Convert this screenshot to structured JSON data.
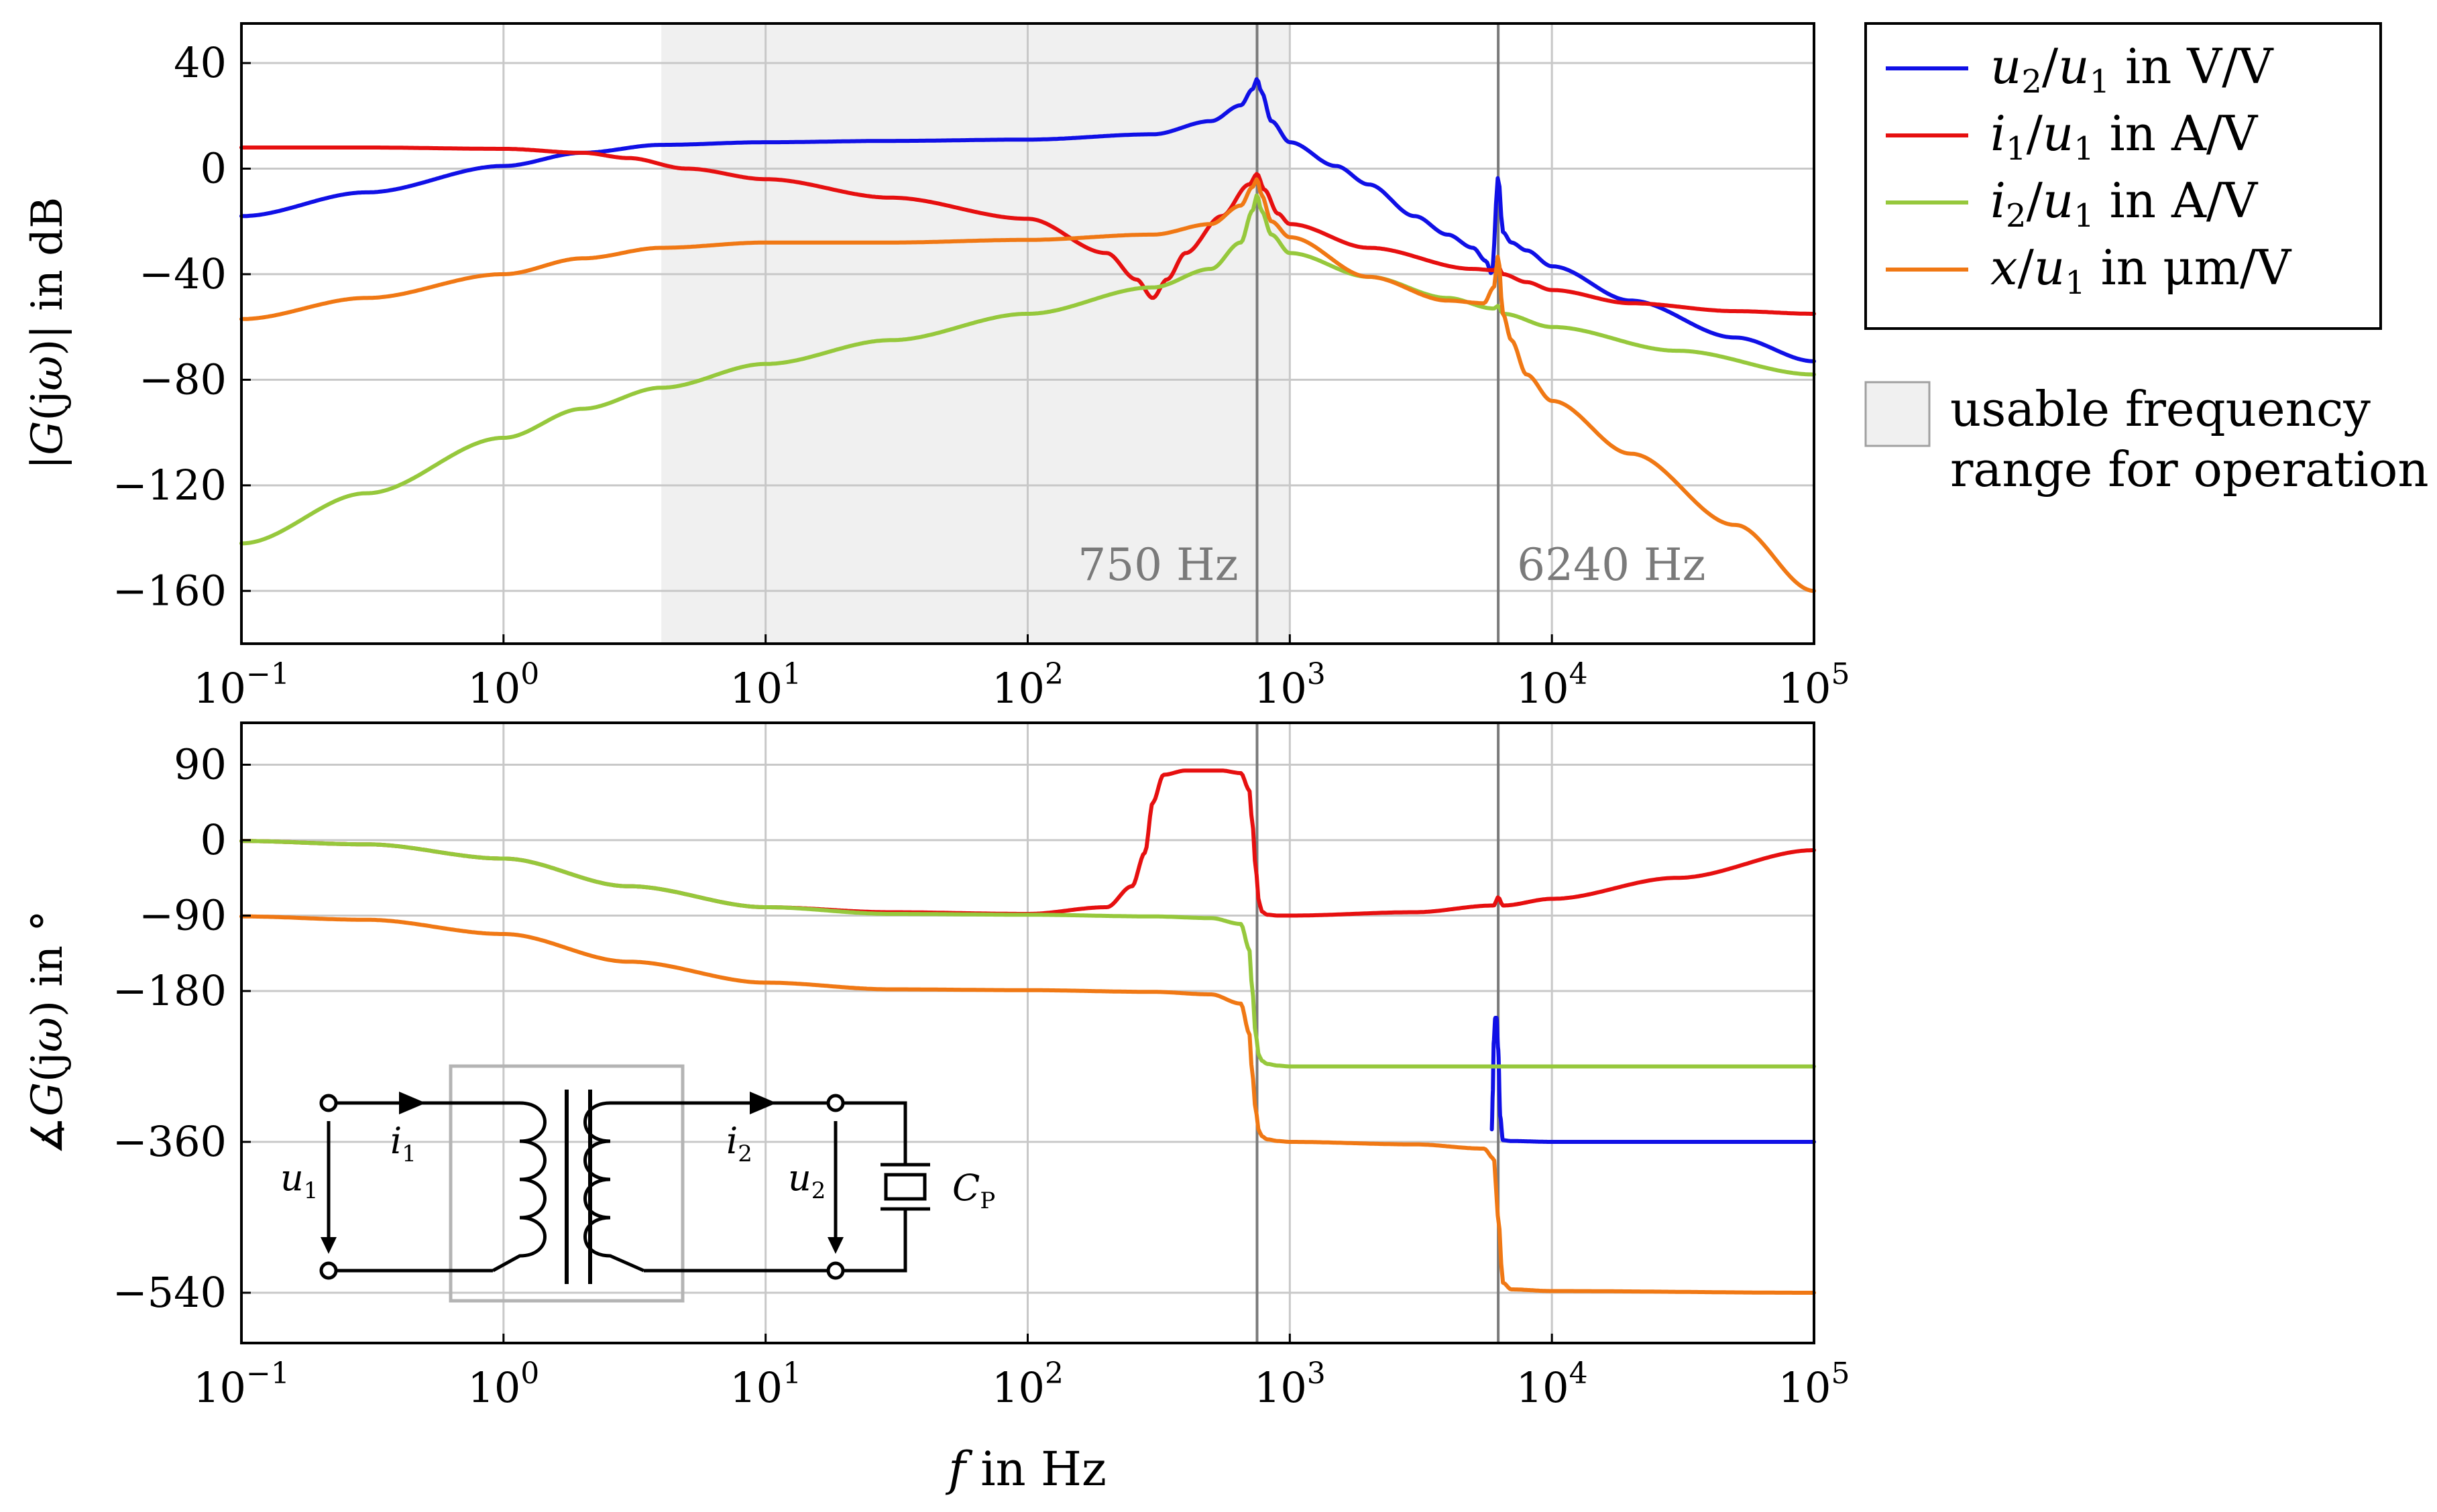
{
  "chart_data": [
    {
      "id": "magnitude",
      "type": "line",
      "x_scale": "log",
      "ylabel": "|G(jω)| in dB",
      "xlim": [
        0.1,
        100000
      ],
      "ylim": [
        -180,
        55
      ],
      "y_ticks": [
        40,
        0,
        -40,
        -80,
        -120,
        -160
      ],
      "y_tick_labels": [
        "40",
        "0",
        "−40",
        "−80",
        "−120",
        "−160"
      ],
      "x_ticks": [
        0.1,
        1,
        10,
        100,
        1000,
        10000,
        100000
      ],
      "shaded_range": [
        4,
        1000
      ],
      "markers": [
        {
          "x": 750,
          "label": "750 Hz"
        },
        {
          "x": 6240,
          "label": "6240 Hz"
        }
      ],
      "series": [
        {
          "name": "u2/u1 in V/V",
          "color": "#1010e6",
          "x": [
            0.1,
            0.3,
            1,
            2,
            4,
            10,
            30,
            100,
            300,
            500,
            650,
            720,
            750,
            780,
            850,
            1000,
            1500,
            2000,
            3000,
            4000,
            5000,
            5600,
            5900,
            6240,
            6500,
            7000,
            8000,
            10000,
            20000,
            50000,
            100000
          ],
          "y": [
            -18,
            -9,
            1,
            6,
            9,
            10,
            10.5,
            11,
            13,
            18,
            24,
            30,
            34,
            29,
            18,
            10,
            1,
            -6,
            -18,
            -25,
            -30,
            -35,
            -40,
            -3,
            -24,
            -28,
            -31,
            -37,
            -50,
            -64,
            -73
          ]
        },
        {
          "name": "i1/u1 in A/V",
          "color": "#e61010",
          "x": [
            0.1,
            0.3,
            1,
            2,
            3,
            5,
            10,
            30,
            100,
            200,
            260,
            300,
            340,
            400,
            550,
            700,
            750,
            800,
            900,
            1000,
            2000,
            5000,
            6000,
            6240,
            6500,
            8000,
            10000,
            20000,
            50000,
            100000
          ],
          "y": [
            8,
            8,
            7.5,
            6,
            4,
            0,
            -4,
            -11,
            -19,
            -32,
            -42,
            -49,
            -42,
            -32,
            -18,
            -6,
            -2,
            -8,
            -17,
            -21,
            -30,
            -38,
            -38.5,
            -37,
            -40,
            -43,
            -46,
            -51,
            -54,
            -55
          ]
        },
        {
          "name": "i2/u1 in A/V",
          "color": "#96c83c",
          "x": [
            0.1,
            0.3,
            1,
            2,
            4,
            10,
            30,
            100,
            300,
            500,
            650,
            720,
            750,
            780,
            850,
            1000,
            2000,
            4000,
            6000,
            6240,
            6500,
            10000,
            30000,
            100000
          ],
          "y": [
            -142,
            -123,
            -102,
            -91,
            -83,
            -74,
            -65,
            -55,
            -45,
            -38,
            -28,
            -16,
            -10,
            -16,
            -25,
            -32,
            -41,
            -49,
            -53,
            -52,
            -55,
            -60,
            -69,
            -78
          ]
        },
        {
          "name": "x/u1 in μm/V",
          "color": "#f07814",
          "x": [
            0.1,
            0.3,
            1,
            2,
            4,
            10,
            30,
            100,
            300,
            500,
            650,
            720,
            750,
            780,
            850,
            1000,
            2000,
            4000,
            5500,
            6000,
            6240,
            6500,
            7000,
            8000,
            10000,
            20000,
            50000,
            100000
          ],
          "y": [
            -57,
            -49,
            -40,
            -34,
            -30,
            -28,
            -28,
            -27,
            -25,
            -21,
            -14,
            -7,
            -4,
            -10,
            -20,
            -26,
            -41,
            -50,
            -51,
            -45,
            -33,
            -55,
            -65,
            -78,
            -88,
            -108,
            -135,
            -160
          ]
        }
      ]
    },
    {
      "id": "phase",
      "type": "line",
      "x_scale": "log",
      "xlabel": "f in Hz",
      "ylabel": "∡G(jω) in °",
      "xlim": [
        0.1,
        100000
      ],
      "ylim": [
        -600,
        140
      ],
      "y_ticks": [
        90,
        0,
        -90,
        -180,
        -360,
        -540
      ],
      "y_tick_labels": [
        "90",
        "0",
        "−90",
        "−180",
        "−360",
        "−540"
      ],
      "x_ticks": [
        0.1,
        1,
        10,
        100,
        1000,
        10000,
        100000
      ],
      "markers": [
        {
          "x": 750
        },
        {
          "x": 6240
        }
      ],
      "series": [
        {
          "name": "u2/u1 in V/V",
          "color": "#1010e6",
          "x": [
            5900,
            5950,
            6000,
            6080,
            6150,
            6240,
            6350,
            6500,
            7000,
            10000,
            30000,
            100000
          ],
          "y": [
            -345,
            -300,
            -240,
            -212,
            -212,
            -250,
            -330,
            -358,
            -359,
            -360,
            -360,
            -360
          ]
        },
        {
          "name": "i1/u1 in A/V",
          "color": "#e61010",
          "x": [
            0.1,
            0.3,
            1,
            3,
            10,
            30,
            100,
            200,
            250,
            280,
            300,
            330,
            400,
            550,
            650,
            700,
            720,
            740,
            760,
            780,
            820,
            900,
            1000,
            3000,
            6000,
            6240,
            6500,
            10000,
            30000,
            100000
          ],
          "y": [
            -1,
            -5,
            -22,
            -55,
            -80,
            -86,
            -88,
            -80,
            -55,
            -15,
            45,
            78,
            83,
            83,
            80,
            60,
            20,
            -30,
            -70,
            -85,
            -89,
            -90,
            -90,
            -86,
            -78,
            -68,
            -78,
            -70,
            -45,
            -12
          ]
        },
        {
          "name": "i2/u1 in A/V",
          "color": "#96c83c",
          "x": [
            0.1,
            0.3,
            1,
            3,
            10,
            30,
            100,
            300,
            500,
            650,
            700,
            720,
            740,
            760,
            780,
            820,
            900,
            1000,
            3000,
            10000,
            100000
          ],
          "y": [
            -1,
            -5,
            -22,
            -55,
            -80,
            -88,
            -89,
            -91,
            -93,
            -100,
            -130,
            -180,
            -230,
            -255,
            -263,
            -267,
            -269,
            -270,
            -270,
            -270,
            -270
          ]
        },
        {
          "name": "x/u1 in μm/V",
          "color": "#f07814",
          "x": [
            0.1,
            0.3,
            1,
            3,
            10,
            30,
            100,
            300,
            500,
            650,
            700,
            720,
            740,
            760,
            780,
            820,
            900,
            1000,
            3000,
            5500,
            6000,
            6240,
            6500,
            7000,
            10000,
            100000
          ],
          "y": [
            -91,
            -95,
            -112,
            -145,
            -170,
            -178,
            -179,
            -181,
            -184,
            -195,
            -230,
            -280,
            -320,
            -345,
            -353,
            -357,
            -359,
            -360,
            -363,
            -368,
            -380,
            -450,
            -528,
            -536,
            -538,
            -540
          ]
        }
      ]
    }
  ],
  "legend": [
    {
      "var": "u",
      "sub": "2",
      "den": "u",
      "dsub": "1",
      "unit": "in V/V",
      "color": "#1010e6"
    },
    {
      "var": "i",
      "sub": "1",
      "den": "u",
      "dsub": "1",
      "unit": "in A/V",
      "color": "#e61010"
    },
    {
      "var": "i",
      "sub": "2",
      "den": "u",
      "dsub": "1",
      "unit": "in A/V",
      "color": "#96c83c"
    },
    {
      "var": "x",
      "sub": "",
      "den": "u",
      "dsub": "1",
      "unit": "in μm/V",
      "color": "#f07814"
    }
  ],
  "shaded_legend": {
    "line1": "usable frequency",
    "line2": "range for operation",
    "color": "#f0f0f0"
  },
  "circuit": {
    "i1": "i",
    "i1_sub": "1",
    "i2": "i",
    "i2_sub": "2",
    "u1": "u",
    "u1_sub": "1",
    "u2": "u",
    "u2_sub": "2",
    "cap": "C",
    "cap_sub": "P"
  }
}
